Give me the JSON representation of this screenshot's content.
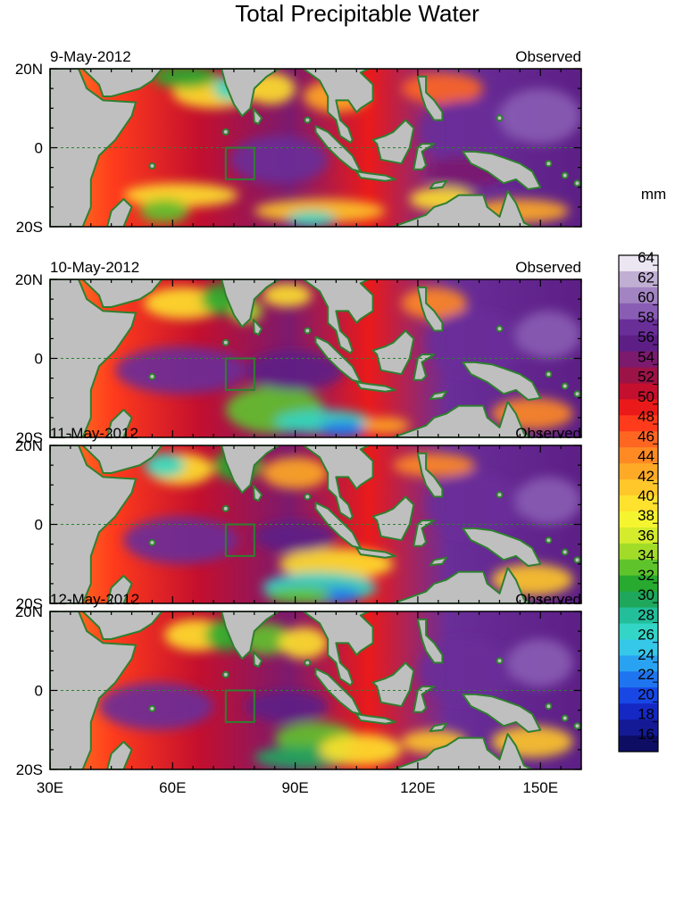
{
  "title": "Total Precipitable Water",
  "units": "mm",
  "panels": [
    {
      "date": "9-May-2012",
      "tag": "Observed"
    },
    {
      "date": "10-May-2012",
      "tag": "Observed"
    },
    {
      "date": "11-May-2012",
      "tag": "Observed"
    },
    {
      "date": "12-May-2012",
      "tag": "Observed"
    }
  ],
  "lat_ticks": [
    "20N",
    "0",
    "20S"
  ],
  "lon_ticks": [
    "30E",
    "60E",
    "90E",
    "120E",
    "150E"
  ],
  "map_extent": {
    "lon_range": [
      30,
      160
    ],
    "lat_range": [
      -20,
      20
    ]
  },
  "colorbar": {
    "tick_labels": [
      "64",
      "62",
      "60",
      "58",
      "56",
      "54",
      "52",
      "50",
      "48",
      "46",
      "44",
      "42",
      "40",
      "38",
      "36",
      "34",
      "32",
      "30",
      "28",
      "26",
      "24",
      "22",
      "20",
      "18",
      "16"
    ],
    "range": [
      15,
      65
    ],
    "colors_top_to_bottom": [
      "#ece6f2",
      "#c0aed3",
      "#a384c2",
      "#8a5db4",
      "#6a2e99",
      "#5d1f86",
      "#7c1a6e",
      "#9b1347",
      "#c40f2e",
      "#ea1a1a",
      "#ff3b1c",
      "#ff6622",
      "#ff8a24",
      "#ffaa26",
      "#ffc72a",
      "#ffe22d",
      "#f5f52f",
      "#d4ec2c",
      "#a2dc29",
      "#5fc42b",
      "#27aa2f",
      "#1fa85c",
      "#22bf9a",
      "#33d6c6",
      "#36c8e8",
      "#2aa2f2",
      "#1f74f0",
      "#1847e6",
      "#1528c4",
      "#141a96",
      "#0d0e63"
    ]
  },
  "colors": {
    "land": "#bfbfbf",
    "coastline": "#2f7f2f",
    "box_outline": "#2f7f2f",
    "equator_line": "#2f7f2f",
    "dry_extreme": "#1f4fe6",
    "moist_extreme": "#6a2e99"
  }
}
